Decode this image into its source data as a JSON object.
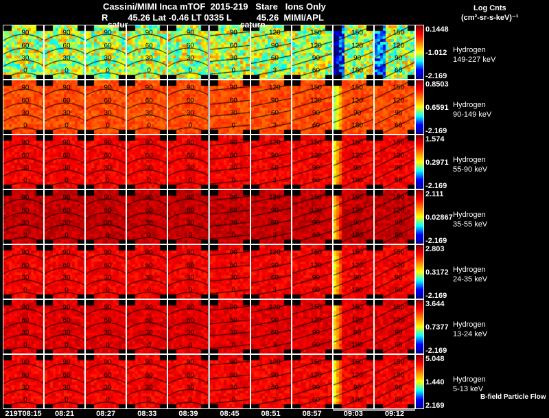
{
  "header": {
    "title": "Cassini/MIMI Inca mTOF  2015-219   Stare   Ions Only",
    "subtitle": "R        45.26 Lat -0.46 LT 0335 L          45.26  MIMI/APL",
    "overlay_left": "satur",
    "overlay_mid": "saturn"
  },
  "colorbar_title": {
    "line1": "Log Cnts",
    "line2": "(cm²-sr-s-keV)⁻¹"
  },
  "footer_note": "B-field Particle Flow",
  "chart_data": {
    "type": "heatmap",
    "title": "Cassini/MIMI Inca mTOF 2015-219 Stare Ions Only",
    "times": [
      "219T08:15",
      "08:21",
      "08:27",
      "08:33",
      "08:39",
      "08:45",
      "08:51",
      "08:57",
      "09:03",
      "09:12"
    ],
    "rows": [
      {
        "species": "Hydrogen",
        "energy": "149-227 keV",
        "max": "0.1448",
        "mid": "-1.012",
        "min": "-2.169"
      },
      {
        "species": "Hydrogen",
        "energy": "90-149 keV",
        "max": "0.8503",
        "mid": "0.6591",
        "min": "-2.169"
      },
      {
        "species": "Hydrogen",
        "energy": "55-90 keV",
        "max": "1.574",
        "mid": "0.2971",
        "min": "-2.169"
      },
      {
        "species": "Hydrogen",
        "energy": "35-55 keV",
        "max": "2.111",
        "mid": "0.02867",
        "min": "-2.169"
      },
      {
        "species": "Hydrogen",
        "energy": "24-35 keV",
        "max": "2.803",
        "mid": "0.3172",
        "min": "-2.169"
      },
      {
        "species": "Hydrogen",
        "energy": "13-24 keV",
        "max": "3.644",
        "mid": "0.7377",
        "min": "-2.169"
      },
      {
        "species": "Hydrogen",
        "energy": "5-13 keV",
        "max": "5.048",
        "mid": "1.440",
        "min": "2.169"
      }
    ],
    "contour_labels": [
      [
        "90",
        "60",
        "30",
        "0"
      ],
      [
        "90",
        "60",
        "30",
        "0"
      ],
      [
        "90",
        "60",
        "30",
        "0"
      ],
      [
        "90",
        "60",
        "30",
        "0"
      ],
      [
        "90",
        "60",
        "30",
        "0"
      ],
      [
        "90",
        "60",
        "30",
        "0"
      ],
      [
        "120",
        "90",
        "60",
        "3"
      ],
      [
        "150",
        "120",
        "90",
        "60"
      ],
      [
        "150",
        "120",
        "90",
        "180"
      ],
      [
        "150",
        "120",
        "90",
        "60"
      ]
    ],
    "colormap": [
      "#800000",
      "#ff0000",
      "#ff8000",
      "#ffff00",
      "#00ffff",
      "#0000ff",
      "#00008f"
    ]
  }
}
